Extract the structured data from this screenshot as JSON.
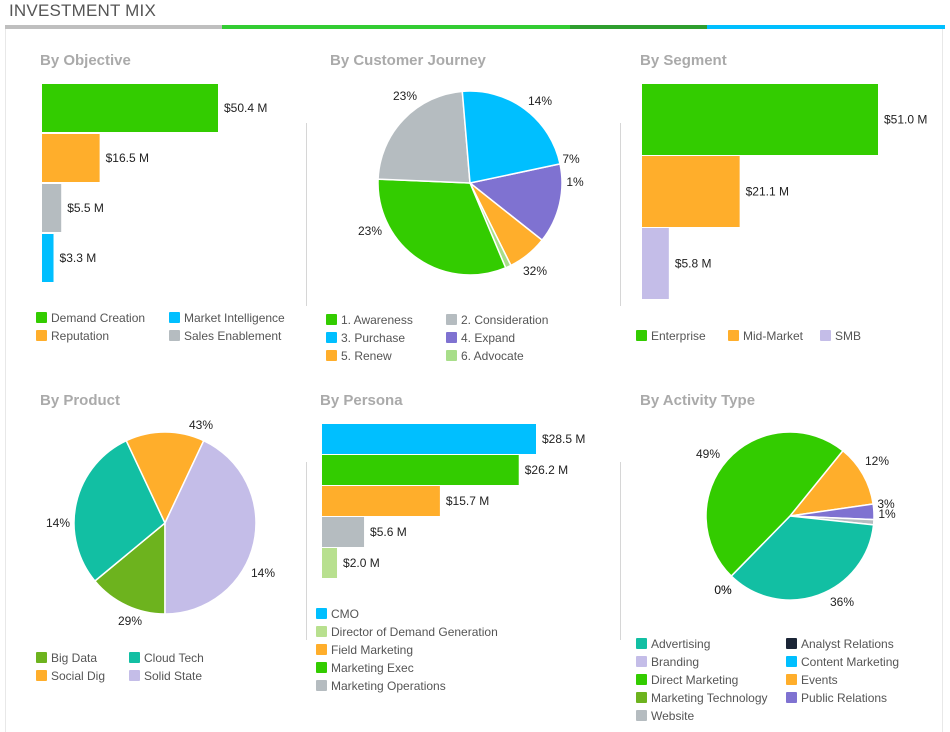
{
  "page": {
    "title": "INVESTMENT MIX",
    "title_bar_colors": [
      "#bfbfbf",
      "#33cc33",
      "#2e9e2e",
      "#00bfff"
    ]
  },
  "chart_data": [
    {
      "id": "objective",
      "type": "bar",
      "orientation": "horizontal",
      "title": "By Objective",
      "categories": [
        "Demand Creation",
        "Reputation",
        "Sales Enablement",
        "Market Intelligence"
      ],
      "values": [
        50.4,
        16.5,
        5.5,
        3.3
      ],
      "labels": [
        "$50.4 M",
        "$16.5 M",
        "$5.5 M",
        "$3.3 M"
      ],
      "colors": [
        "#33cc00",
        "#ffae2b",
        "#b5bcc0",
        "#00bfff"
      ],
      "legend": [
        {
          "label": "Demand Creation",
          "color": "#33cc00"
        },
        {
          "label": "Market Intelligence",
          "color": "#00bfff"
        },
        {
          "label": "Reputation",
          "color": "#ffae2b"
        },
        {
          "label": "Sales Enablement",
          "color": "#b5bcc0"
        }
      ]
    },
    {
      "id": "journey",
      "type": "pie",
      "title": "By Customer Journey",
      "slices": [
        {
          "label": "4. Expand",
          "value": 14,
          "color": "#7f72d1"
        },
        {
          "label": "5. Renew",
          "value": 7,
          "color": "#ffae2b"
        },
        {
          "label": "6. Advocate",
          "value": 1,
          "color": "#a8de8a"
        },
        {
          "label": "1. Awareness",
          "value": 32,
          "color": "#33cc00"
        },
        {
          "label": "2. Consideration",
          "value": 23,
          "color": "#b5bcc0"
        },
        {
          "label": "3. Purchase",
          "value": 23,
          "color": "#00bfff"
        }
      ],
      "slice_labels": [
        "14%",
        "7%",
        "1%",
        "32%",
        "23%",
        "23%"
      ],
      "legend": [
        {
          "label": "1. Awareness",
          "color": "#33cc00"
        },
        {
          "label": "2. Consideration",
          "color": "#b5bcc0"
        },
        {
          "label": "3. Purchase",
          "color": "#00bfff"
        },
        {
          "label": "4. Expand",
          "color": "#7f72d1"
        },
        {
          "label": "5. Renew",
          "color": "#ffae2b"
        },
        {
          "label": "6. Advocate",
          "color": "#a8de8a"
        }
      ]
    },
    {
      "id": "segment",
      "type": "bar",
      "orientation": "horizontal",
      "title": "By Segment",
      "categories": [
        "Enterprise",
        "Mid-Market",
        "SMB"
      ],
      "values": [
        51.0,
        21.1,
        5.8
      ],
      "labels": [
        "$51.0 M",
        "$21.1 M",
        "$5.8 M"
      ],
      "colors": [
        "#33cc00",
        "#ffae2b",
        "#c4bde8"
      ],
      "legend": [
        {
          "label": "Enterprise",
          "color": "#33cc00"
        },
        {
          "label": "Mid-Market",
          "color": "#ffae2b"
        },
        {
          "label": "SMB",
          "color": "#c4bde8"
        }
      ]
    },
    {
      "id": "product",
      "type": "pie",
      "title": "By Product",
      "slices": [
        {
          "label": "Big Data",
          "value": 14,
          "color": "#6db31e"
        },
        {
          "label": "Cloud Tech",
          "value": 29,
          "color": "#12bfa3"
        },
        {
          "label": "Social Dig",
          "value": 14,
          "color": "#ffae2b"
        },
        {
          "label": "Solid State",
          "value": 43,
          "color": "#c4bde8"
        }
      ],
      "slice_labels": [
        "14%",
        "29%",
        "14%",
        "43%"
      ],
      "legend": [
        {
          "label": "Big Data",
          "color": "#6db31e"
        },
        {
          "label": "Cloud Tech",
          "color": "#12bfa3"
        },
        {
          "label": "Social Dig",
          "color": "#ffae2b"
        },
        {
          "label": "Solid State",
          "color": "#c4bde8"
        }
      ]
    },
    {
      "id": "persona",
      "type": "bar",
      "orientation": "horizontal",
      "title": "By Persona",
      "categories": [
        "CMO",
        "Marketing Exec",
        "Field Marketing",
        "Marketing Operations",
        "Director of Demand Generation"
      ],
      "values": [
        28.5,
        26.2,
        15.7,
        5.6,
        2.0
      ],
      "labels": [
        "$28.5 M",
        "$26.2 M",
        "$15.7 M",
        "$5.6 M",
        "$2.0 M"
      ],
      "colors": [
        "#00bfff",
        "#33cc00",
        "#ffae2b",
        "#b5bcc0",
        "#b8e08f"
      ],
      "legend": [
        {
          "label": "CMO",
          "color": "#00bfff"
        },
        {
          "label": "Director of Demand Generation",
          "color": "#b8e08f"
        },
        {
          "label": "Field Marketing",
          "color": "#ffae2b"
        },
        {
          "label": "Marketing Exec",
          "color": "#33cc00"
        },
        {
          "label": "Marketing Operations",
          "color": "#b5bcc0"
        }
      ]
    },
    {
      "id": "activity",
      "type": "pie",
      "title": "By Activity Type",
      "slices": [
        {
          "label": "Events",
          "value": 12,
          "color": "#ffae2b"
        },
        {
          "label": "Public Relations",
          "value": 3,
          "color": "#7f72d1"
        },
        {
          "label": "Website",
          "value": 1,
          "color": "#b5bcc0"
        },
        {
          "label": "Advertising",
          "value": 36,
          "color": "#12bfa3"
        },
        {
          "label": "Analyst Relations",
          "value": 0,
          "color": "#1b2536"
        },
        {
          "label": "Branding",
          "value": 0,
          "color": "#c4bde8"
        },
        {
          "label": "Direct Marketing",
          "value": 49,
          "color": "#33cc00"
        }
      ],
      "slice_labels": [
        "12%",
        "3%",
        "1%",
        "36%",
        "0%",
        "0%",
        "49%"
      ],
      "legend": [
        {
          "label": "Advertising",
          "color": "#12bfa3"
        },
        {
          "label": "Analyst Relations",
          "color": "#1b2536"
        },
        {
          "label": "Branding",
          "color": "#c4bde8"
        },
        {
          "label": "Content Marketing",
          "color": "#00bfff"
        },
        {
          "label": "Direct Marketing",
          "color": "#33cc00"
        },
        {
          "label": "Events",
          "color": "#ffae2b"
        },
        {
          "label": "Marketing Technology",
          "color": "#6db31e"
        },
        {
          "label": "Public Relations",
          "color": "#7f72d1"
        },
        {
          "label": "Website",
          "color": "#b5bcc0"
        }
      ]
    }
  ]
}
